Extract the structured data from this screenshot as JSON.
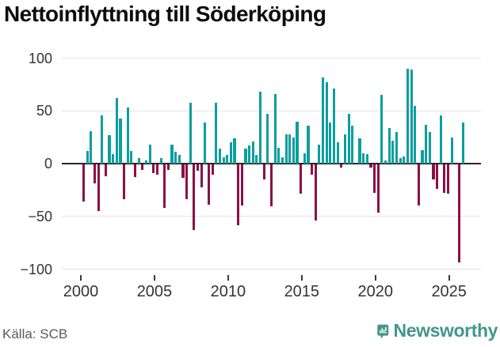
{
  "title": "Nettoinflyttning till Söderköping",
  "source": "Källa: SCB",
  "branding": {
    "name": "Newsworthy",
    "color": "#43968a"
  },
  "colors": {
    "positive_bar": "#0d9e9e",
    "negative_bar": "#8c1045",
    "zero_axis": "#262626",
    "gridline": "#e4e4e4",
    "tick_text": "#333333",
    "source_text": "#595959"
  },
  "chart_data": {
    "type": "bar",
    "title": "Nettoinflyttning till Söderköping",
    "xlabel": "",
    "ylabel": "",
    "frequency": "quarterly",
    "start_period": "2000Q1",
    "end_period": "2025Q4",
    "ylim": [
      -100,
      100
    ],
    "grid": true,
    "legend": "none",
    "y_ticks": [
      100,
      50,
      0,
      -50,
      -100
    ],
    "y_tick_labels": [
      "100",
      "50",
      "0",
      "−50",
      "−100"
    ],
    "x_ticks": [
      2000,
      2005,
      2010,
      2015,
      2020,
      2025
    ],
    "x_tick_labels": [
      "2000",
      "2005",
      "2010",
      "2015",
      "2020",
      "2025"
    ],
    "values": [
      -35,
      12,
      31,
      -18,
      -44,
      46,
      -11,
      27,
      9,
      62,
      43,
      -33,
      53,
      12,
      -12,
      5,
      -5,
      3,
      18,
      -8,
      -10,
      5,
      -41,
      -5,
      18,
      11,
      8,
      -13,
      -33,
      58,
      -62,
      -6,
      -22,
      39,
      -38,
      -10,
      58,
      14,
      6,
      8,
      20,
      24,
      -58,
      -39,
      14,
      17,
      21,
      8,
      68,
      -14,
      47,
      -40,
      66,
      15,
      6,
      28,
      28,
      25,
      40,
      -28,
      10,
      36,
      -10,
      -53,
      18,
      82,
      77,
      39,
      71,
      20,
      -3,
      28,
      47,
      36,
      0,
      24,
      10,
      9,
      -3,
      -27,
      -46,
      65,
      3,
      34,
      22,
      30,
      5,
      7,
      90,
      89,
      55,
      -39,
      13,
      37,
      30,
      -14,
      -23,
      46,
      -27,
      -28,
      25,
      0,
      -93,
      39
    ]
  }
}
